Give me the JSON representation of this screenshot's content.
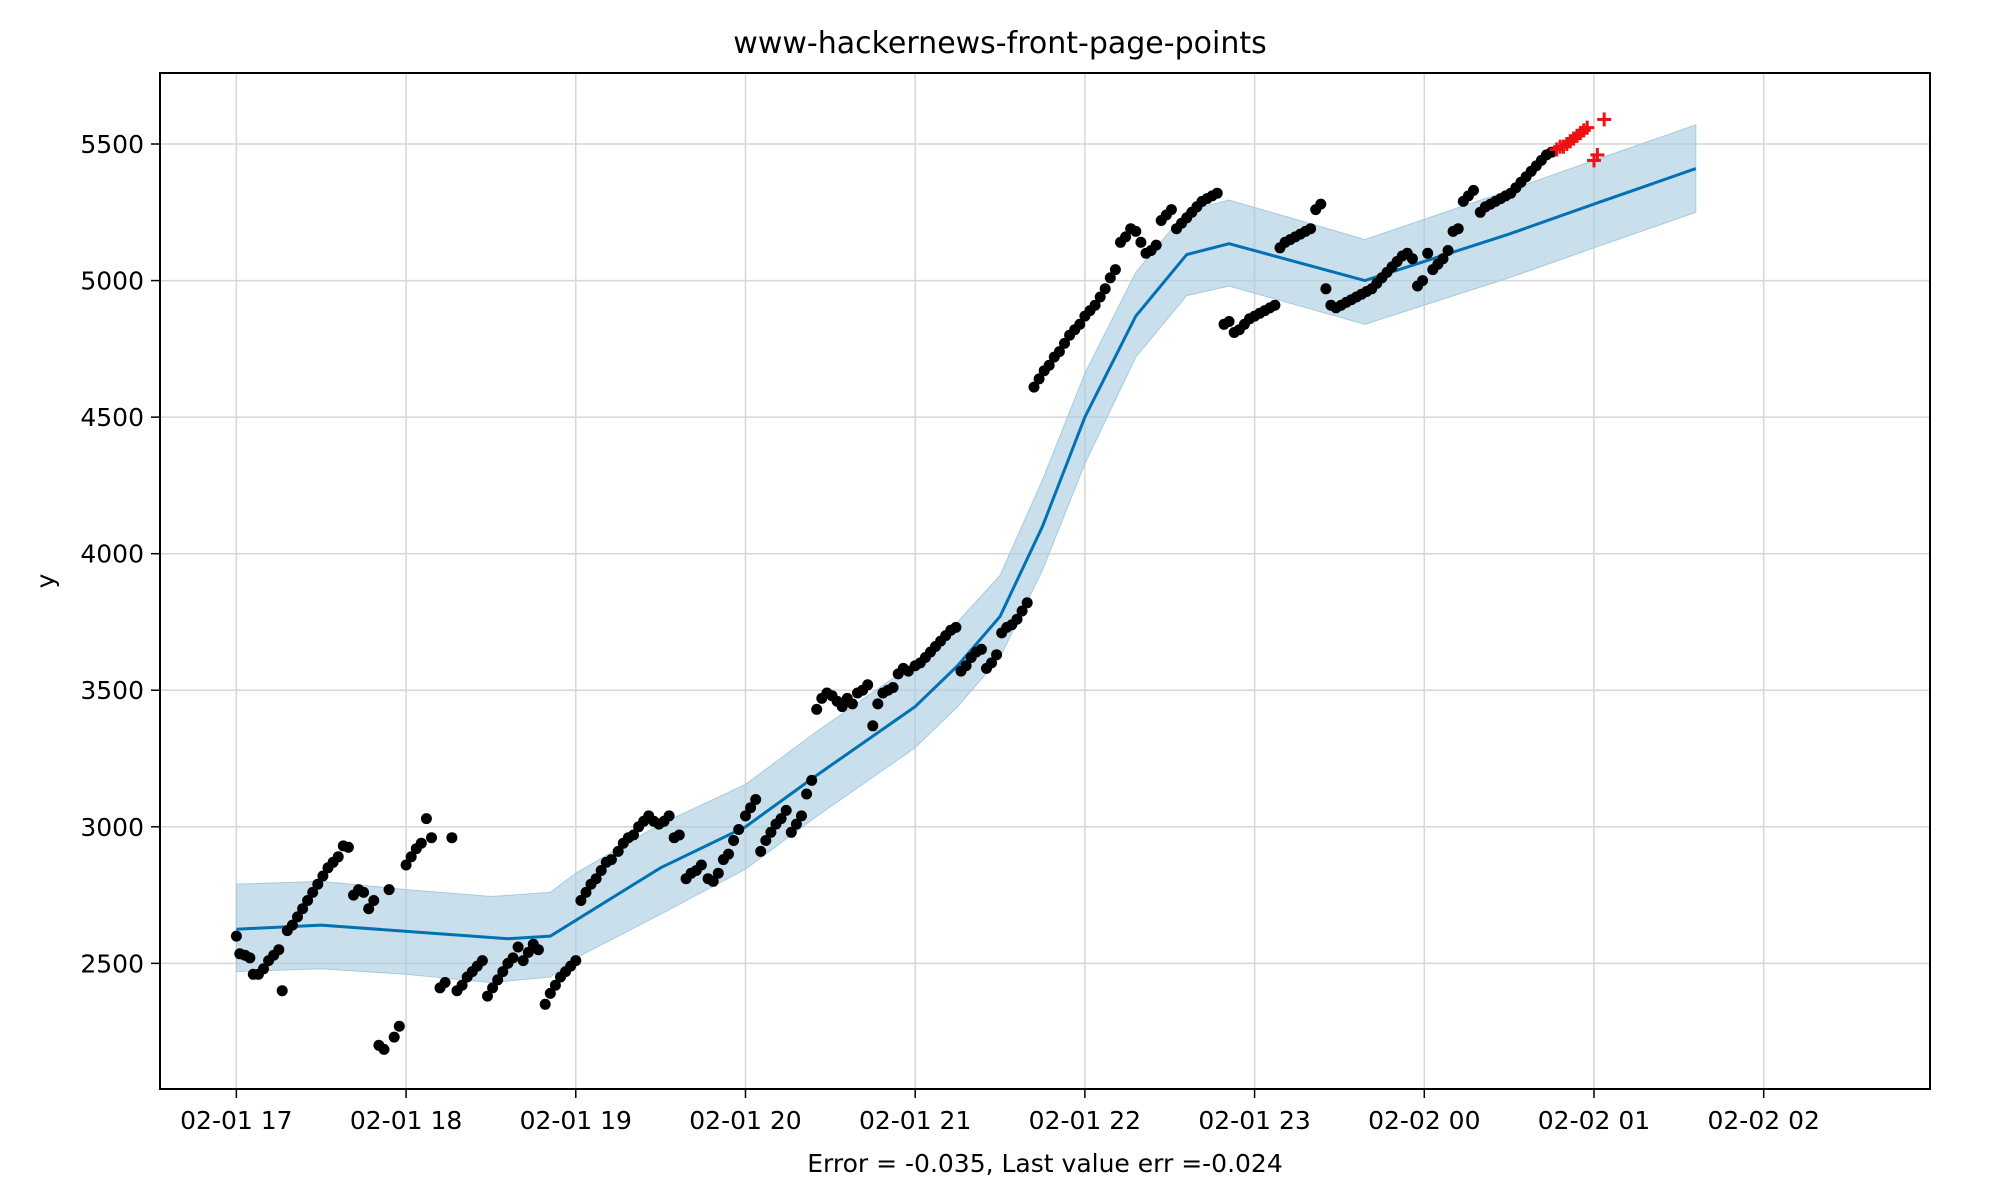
{
  "chart_data": {
    "type": "line",
    "title": "www-hackernews-front-page-points",
    "xlabel": "Error = -0.035, Last value err =-0.024",
    "ylabel": "y",
    "x_unit": "hours",
    "xlim": [
      16.55,
      26.98
    ],
    "ylim": [
      2040,
      5760
    ],
    "x_ticks": [
      {
        "x": 17,
        "label": "02-01 17"
      },
      {
        "x": 18,
        "label": "02-01 18"
      },
      {
        "x": 19,
        "label": "02-01 19"
      },
      {
        "x": 20,
        "label": "02-01 20"
      },
      {
        "x": 21,
        "label": "02-01 21"
      },
      {
        "x": 22,
        "label": "02-01 22"
      },
      {
        "x": 23,
        "label": "02-01 23"
      },
      {
        "x": 24,
        "label": "02-02 00"
      },
      {
        "x": 25,
        "label": "02-02 01"
      },
      {
        "x": 26,
        "label": "02-02 02"
      }
    ],
    "y_ticks": [
      2500,
      3000,
      3500,
      4000,
      4500,
      5000,
      5500
    ],
    "grid": true,
    "colors": {
      "forecast": "#0072B2",
      "band": "#A6CAE0",
      "observed": "#000000",
      "test": "#EE1111"
    },
    "forecast": {
      "name": "yhat",
      "points": [
        [
          17.0,
          2625
        ],
        [
          17.5,
          2640
        ],
        [
          18.6,
          2590
        ],
        [
          18.85,
          2600
        ],
        [
          19.5,
          2850
        ],
        [
          20.0,
          3000
        ],
        [
          20.4,
          3180
        ],
        [
          21.0,
          3440
        ],
        [
          21.25,
          3590
        ],
        [
          21.5,
          3770
        ],
        [
          21.75,
          4100
        ],
        [
          22.0,
          4500
        ],
        [
          22.3,
          4870
        ],
        [
          22.6,
          5095
        ],
        [
          22.85,
          5135
        ],
        [
          23.65,
          5000
        ],
        [
          24.5,
          5170
        ],
        [
          25.0,
          5280
        ],
        [
          25.6,
          5410
        ]
      ]
    },
    "band": {
      "name": "uncertainty interval",
      "points": [
        [
          17.0,
          2470,
          2790
        ],
        [
          17.5,
          2480,
          2800
        ],
        [
          18.0,
          2460,
          2770
        ],
        [
          18.5,
          2430,
          2745
        ],
        [
          18.85,
          2450,
          2760
        ],
        [
          19.0,
          2520,
          2830
        ],
        [
          19.5,
          2680,
          3010
        ],
        [
          20.0,
          2845,
          3155
        ],
        [
          20.4,
          3030,
          3340
        ],
        [
          21.0,
          3290,
          3600
        ],
        [
          21.25,
          3440,
          3750
        ],
        [
          21.5,
          3620,
          3920
        ],
        [
          21.75,
          3940,
          4270
        ],
        [
          22.0,
          4330,
          4660
        ],
        [
          22.3,
          4720,
          5030
        ],
        [
          22.6,
          4945,
          5255
        ],
        [
          22.85,
          4980,
          5295
        ],
        [
          23.65,
          4840,
          5150
        ],
        [
          24.5,
          5010,
          5330
        ],
        [
          25.0,
          5120,
          5440
        ],
        [
          25.6,
          5250,
          5570
        ]
      ]
    },
    "observed": {
      "name": "observed",
      "points": [
        [
          17.0,
          2600
        ],
        [
          17.02,
          2535
        ],
        [
          17.05,
          2530
        ],
        [
          17.08,
          2520
        ],
        [
          17.1,
          2460
        ],
        [
          17.13,
          2460
        ],
        [
          17.16,
          2480
        ],
        [
          17.19,
          2510
        ],
        [
          17.22,
          2530
        ],
        [
          17.25,
          2550
        ],
        [
          17.27,
          2400
        ],
        [
          17.3,
          2620
        ],
        [
          17.33,
          2640
        ],
        [
          17.36,
          2670
        ],
        [
          17.39,
          2700
        ],
        [
          17.42,
          2730
        ],
        [
          17.45,
          2760
        ],
        [
          17.48,
          2790
        ],
        [
          17.51,
          2820
        ],
        [
          17.54,
          2850
        ],
        [
          17.57,
          2870
        ],
        [
          17.6,
          2890
        ],
        [
          17.63,
          2930
        ],
        [
          17.66,
          2925
        ],
        [
          17.69,
          2750
        ],
        [
          17.72,
          2770
        ],
        [
          17.75,
          2760
        ],
        [
          17.78,
          2700
        ],
        [
          17.81,
          2730
        ],
        [
          17.84,
          2200
        ],
        [
          17.87,
          2185
        ],
        [
          17.9,
          2770
        ],
        [
          17.93,
          2230
        ],
        [
          17.96,
          2270
        ],
        [
          18.0,
          2860
        ],
        [
          18.03,
          2890
        ],
        [
          18.06,
          2920
        ],
        [
          18.09,
          2940
        ],
        [
          18.12,
          3030
        ],
        [
          18.15,
          2960
        ],
        [
          18.2,
          2410
        ],
        [
          18.23,
          2430
        ],
        [
          18.27,
          2960
        ],
        [
          18.3,
          2400
        ],
        [
          18.33,
          2420
        ],
        [
          18.36,
          2450
        ],
        [
          18.39,
          2470
        ],
        [
          18.42,
          2490
        ],
        [
          18.45,
          2510
        ],
        [
          18.48,
          2380
        ],
        [
          18.51,
          2410
        ],
        [
          18.54,
          2440
        ],
        [
          18.57,
          2470
        ],
        [
          18.6,
          2500
        ],
        [
          18.63,
          2520
        ],
        [
          18.66,
          2560
        ],
        [
          18.69,
          2510
        ],
        [
          18.72,
          2540
        ],
        [
          18.75,
          2570
        ],
        [
          18.78,
          2550
        ],
        [
          18.82,
          2350
        ],
        [
          18.85,
          2390
        ],
        [
          18.88,
          2420
        ],
        [
          18.91,
          2450
        ],
        [
          18.94,
          2470
        ],
        [
          18.97,
          2490
        ],
        [
          19.0,
          2510
        ],
        [
          19.03,
          2730
        ],
        [
          19.06,
          2760
        ],
        [
          19.09,
          2790
        ],
        [
          19.12,
          2810
        ],
        [
          19.15,
          2840
        ],
        [
          19.18,
          2870
        ],
        [
          19.21,
          2880
        ],
        [
          19.25,
          2910
        ],
        [
          19.28,
          2940
        ],
        [
          19.31,
          2960
        ],
        [
          19.34,
          2970
        ],
        [
          19.37,
          3000
        ],
        [
          19.4,
          3020
        ],
        [
          19.43,
          3040
        ],
        [
          19.46,
          3020
        ],
        [
          19.49,
          3010
        ],
        [
          19.52,
          3020
        ],
        [
          19.55,
          3040
        ],
        [
          19.58,
          2960
        ],
        [
          19.61,
          2970
        ],
        [
          19.65,
          2810
        ],
        [
          19.68,
          2830
        ],
        [
          19.71,
          2840
        ],
        [
          19.74,
          2860
        ],
        [
          19.78,
          2810
        ],
        [
          19.81,
          2800
        ],
        [
          19.84,
          2830
        ],
        [
          19.87,
          2880
        ],
        [
          19.9,
          2900
        ],
        [
          19.93,
          2950
        ],
        [
          19.96,
          2990
        ],
        [
          20.0,
          3040
        ],
        [
          20.03,
          3070
        ],
        [
          20.06,
          3100
        ],
        [
          20.09,
          2910
        ],
        [
          20.12,
          2950
        ],
        [
          20.15,
          2980
        ],
        [
          20.18,
          3010
        ],
        [
          20.21,
          3030
        ],
        [
          20.24,
          3060
        ],
        [
          20.27,
          2980
        ],
        [
          20.3,
          3010
        ],
        [
          20.33,
          3040
        ],
        [
          20.36,
          3120
        ],
        [
          20.39,
          3170
        ],
        [
          20.42,
          3430
        ],
        [
          20.45,
          3470
        ],
        [
          20.48,
          3490
        ],
        [
          20.51,
          3480
        ],
        [
          20.54,
          3460
        ],
        [
          20.57,
          3440
        ],
        [
          20.6,
          3470
        ],
        [
          20.63,
          3450
        ],
        [
          20.66,
          3490
        ],
        [
          20.69,
          3500
        ],
        [
          20.72,
          3520
        ],
        [
          20.75,
          3370
        ],
        [
          20.78,
          3450
        ],
        [
          20.81,
          3490
        ],
        [
          20.84,
          3500
        ],
        [
          20.87,
          3510
        ],
        [
          20.9,
          3560
        ],
        [
          20.93,
          3580
        ],
        [
          20.96,
          3570
        ],
        [
          21.0,
          3590
        ],
        [
          21.03,
          3600
        ],
        [
          21.06,
          3620
        ],
        [
          21.09,
          3640
        ],
        [
          21.12,
          3660
        ],
        [
          21.15,
          3680
        ],
        [
          21.18,
          3700
        ],
        [
          21.21,
          3720
        ],
        [
          21.24,
          3730
        ],
        [
          21.27,
          3570
        ],
        [
          21.3,
          3590
        ],
        [
          21.33,
          3620
        ],
        [
          21.36,
          3640
        ],
        [
          21.39,
          3650
        ],
        [
          21.42,
          3580
        ],
        [
          21.45,
          3600
        ],
        [
          21.48,
          3630
        ],
        [
          21.51,
          3710
        ],
        [
          21.54,
          3730
        ],
        [
          21.57,
          3740
        ],
        [
          21.6,
          3760
        ],
        [
          21.63,
          3790
        ],
        [
          21.66,
          3820
        ],
        [
          21.7,
          4610
        ],
        [
          21.73,
          4640
        ],
        [
          21.76,
          4670
        ],
        [
          21.79,
          4690
        ],
        [
          21.82,
          4720
        ],
        [
          21.85,
          4740
        ],
        [
          21.88,
          4770
        ],
        [
          21.91,
          4800
        ],
        [
          21.94,
          4820
        ],
        [
          21.97,
          4840
        ],
        [
          22.0,
          4870
        ],
        [
          22.03,
          4890
        ],
        [
          22.06,
          4910
        ],
        [
          22.09,
          4940
        ],
        [
          22.12,
          4970
        ],
        [
          22.15,
          5010
        ],
        [
          22.18,
          5040
        ],
        [
          22.21,
          5140
        ],
        [
          22.24,
          5160
        ],
        [
          22.27,
          5190
        ],
        [
          22.3,
          5180
        ],
        [
          22.33,
          5140
        ],
        [
          22.36,
          5100
        ],
        [
          22.39,
          5110
        ],
        [
          22.42,
          5130
        ],
        [
          22.45,
          5220
        ],
        [
          22.48,
          5240
        ],
        [
          22.51,
          5260
        ],
        [
          22.54,
          5190
        ],
        [
          22.57,
          5210
        ],
        [
          22.6,
          5230
        ],
        [
          22.63,
          5250
        ],
        [
          22.66,
          5270
        ],
        [
          22.69,
          5290
        ],
        [
          22.72,
          5300
        ],
        [
          22.75,
          5310
        ],
        [
          22.78,
          5320
        ],
        [
          22.82,
          4840
        ],
        [
          22.85,
          4850
        ],
        [
          22.88,
          4810
        ],
        [
          22.91,
          4820
        ],
        [
          22.94,
          4840
        ],
        [
          22.97,
          4860
        ],
        [
          23.0,
          4870
        ],
        [
          23.03,
          4880
        ],
        [
          23.06,
          4890
        ],
        [
          23.09,
          4900
        ],
        [
          23.12,
          4910
        ],
        [
          23.15,
          5120
        ],
        [
          23.18,
          5140
        ],
        [
          23.21,
          5150
        ],
        [
          23.24,
          5160
        ],
        [
          23.27,
          5170
        ],
        [
          23.3,
          5180
        ],
        [
          23.33,
          5190
        ],
        [
          23.36,
          5260
        ],
        [
          23.39,
          5280
        ],
        [
          23.42,
          4970
        ],
        [
          23.45,
          4910
        ],
        [
          23.48,
          4900
        ],
        [
          23.51,
          4910
        ],
        [
          23.54,
          4920
        ],
        [
          23.57,
          4930
        ],
        [
          23.6,
          4940
        ],
        [
          23.63,
          4950
        ],
        [
          23.66,
          4960
        ],
        [
          23.69,
          4970
        ],
        [
          23.72,
          4990
        ],
        [
          23.75,
          5010
        ],
        [
          23.78,
          5030
        ],
        [
          23.81,
          5050
        ],
        [
          23.84,
          5070
        ],
        [
          23.87,
          5090
        ],
        [
          23.9,
          5100
        ],
        [
          23.93,
          5080
        ],
        [
          23.96,
          4980
        ],
        [
          23.99,
          5000
        ],
        [
          24.02,
          5100
        ],
        [
          24.05,
          5040
        ],
        [
          24.08,
          5060
        ],
        [
          24.11,
          5080
        ],
        [
          24.14,
          5110
        ],
        [
          24.17,
          5180
        ],
        [
          24.2,
          5190
        ],
        [
          24.23,
          5290
        ],
        [
          24.26,
          5310
        ],
        [
          24.29,
          5330
        ],
        [
          24.33,
          5250
        ],
        [
          24.36,
          5270
        ],
        [
          24.39,
          5280
        ],
        [
          24.42,
          5290
        ],
        [
          24.45,
          5300
        ],
        [
          24.48,
          5310
        ],
        [
          24.51,
          5320
        ],
        [
          24.54,
          5340
        ],
        [
          24.57,
          5360
        ],
        [
          24.6,
          5380
        ],
        [
          24.63,
          5400
        ],
        [
          24.66,
          5420
        ],
        [
          24.69,
          5440
        ],
        [
          24.72,
          5460
        ],
        [
          24.75,
          5470
        ]
      ]
    },
    "test": {
      "name": "test",
      "marker": "+",
      "points": [
        [
          24.78,
          5480
        ],
        [
          24.8,
          5490
        ],
        [
          24.82,
          5490
        ],
        [
          24.84,
          5500
        ],
        [
          24.86,
          5510
        ],
        [
          24.88,
          5520
        ],
        [
          24.9,
          5530
        ],
        [
          24.92,
          5540
        ],
        [
          24.94,
          5550
        ],
        [
          24.96,
          5560
        ],
        [
          25.0,
          5440
        ],
        [
          25.02,
          5460
        ],
        [
          25.06,
          5590
        ]
      ]
    }
  }
}
